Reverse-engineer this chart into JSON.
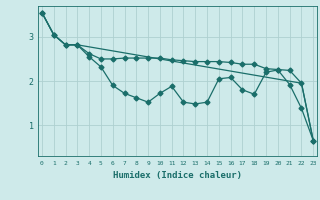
{
  "xlabel": "Humidex (Indice chaleur)",
  "ylabel": "",
  "bg_color": "#ceeaea",
  "grid_color": "#aed0d0",
  "line_color": "#1a6e6a",
  "x_ticks": [
    0,
    1,
    2,
    3,
    4,
    5,
    6,
    7,
    8,
    9,
    10,
    11,
    12,
    13,
    14,
    15,
    16,
    17,
    18,
    19,
    20,
    21,
    22,
    23
  ],
  "y_ticks": [
    1,
    2,
    3
  ],
  "xlim": [
    -0.3,
    23.3
  ],
  "ylim": [
    0.3,
    3.7
  ],
  "line1_x": [
    0,
    1,
    2,
    3,
    4,
    5,
    6,
    7,
    8,
    9,
    10,
    11,
    12,
    13,
    14,
    15,
    16,
    17,
    18,
    19,
    20,
    21,
    22,
    23
  ],
  "line1_y": [
    3.55,
    3.05,
    2.82,
    2.82,
    2.62,
    2.5,
    2.5,
    2.52,
    2.52,
    2.52,
    2.52,
    2.48,
    2.46,
    2.44,
    2.44,
    2.44,
    2.42,
    2.38,
    2.38,
    2.28,
    2.26,
    2.24,
    1.95,
    0.65
  ],
  "line2_x": [
    0,
    1,
    2,
    3,
    22,
    23
  ],
  "line2_y": [
    3.55,
    3.05,
    2.82,
    2.82,
    1.95,
    0.65
  ],
  "line3_x": [
    0,
    1,
    2,
    3,
    4,
    5,
    6,
    7,
    8,
    9,
    10,
    11,
    12,
    13,
    14,
    15,
    16,
    17,
    18,
    19,
    20,
    21,
    22,
    23
  ],
  "line3_y": [
    3.55,
    3.05,
    2.82,
    2.82,
    2.55,
    2.32,
    1.9,
    1.72,
    1.62,
    1.52,
    1.72,
    1.88,
    1.52,
    1.48,
    1.52,
    2.05,
    2.08,
    1.8,
    1.7,
    2.2,
    2.25,
    1.92,
    1.38,
    0.65
  ],
  "marker": "D",
  "markersize": 2.5,
  "linewidth": 0.9
}
